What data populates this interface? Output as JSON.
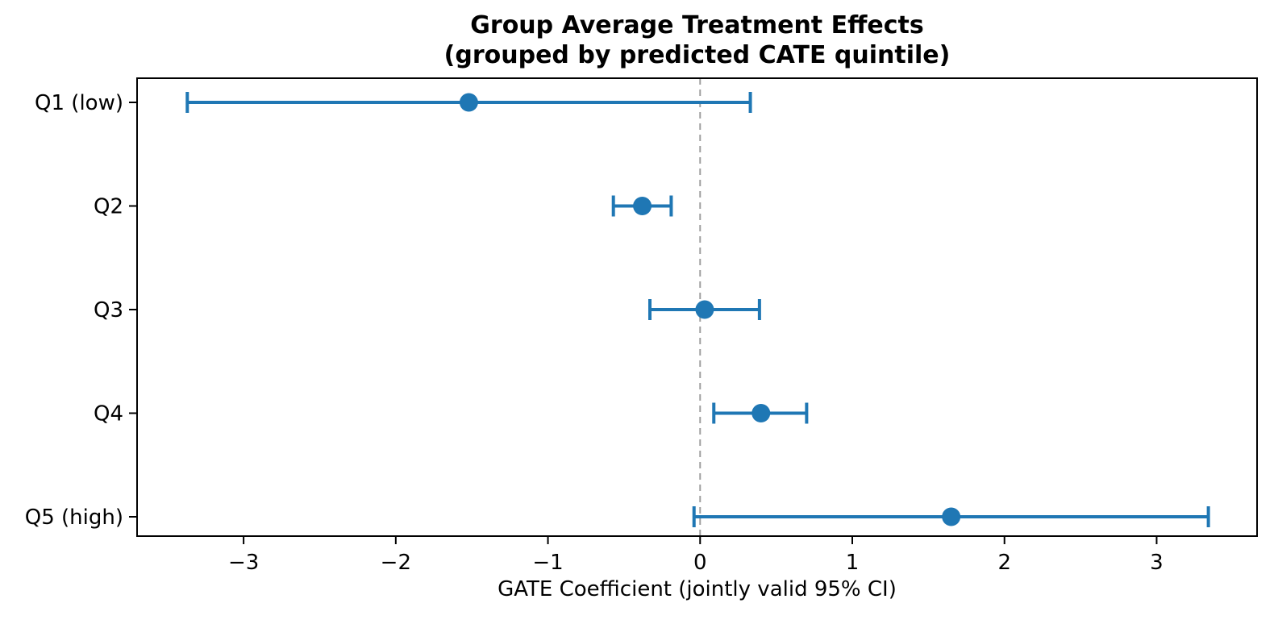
{
  "chart_data": {
    "type": "scatter",
    "subtype": "horizontal-errorbar",
    "title": "Group Average Treatment Effects\n(grouped by predicted CATE quintile)",
    "title_line1": "Group Average Treatment Effects",
    "title_line2": "(grouped by predicted CATE quintile)",
    "xlabel": "GATE Coefficient (jointly valid 95% CI)",
    "categories": [
      "Q1 (low)",
      "Q2",
      "Q3",
      "Q4",
      "Q5 (high)"
    ],
    "estimates": [
      -1.52,
      -0.38,
      0.03,
      0.4,
      1.65
    ],
    "ci_low": [
      -3.37,
      -0.57,
      -0.33,
      0.09,
      -0.04
    ],
    "ci_high": [
      0.33,
      -0.19,
      0.39,
      0.7,
      3.34
    ],
    "xlim": [
      -3.7,
      3.66
    ],
    "xticks": [
      -3,
      -2,
      -1,
      0,
      1,
      2,
      3
    ],
    "xtick_labels": [
      "−3",
      "−2",
      "−1",
      "0",
      "1",
      "2",
      "3"
    ],
    "reference_line_x": 0,
    "grid": false,
    "legend": null,
    "layout_hints": {
      "orientation": "horizontal",
      "reference_line_style": "dashed",
      "error_bars_have_caps": true
    },
    "colors": {
      "point": "#1f77b4",
      "error_bar": "#1f77b4",
      "reference_line": "#a0a0a0",
      "axis": "#000000",
      "background": "#ffffff"
    }
  }
}
